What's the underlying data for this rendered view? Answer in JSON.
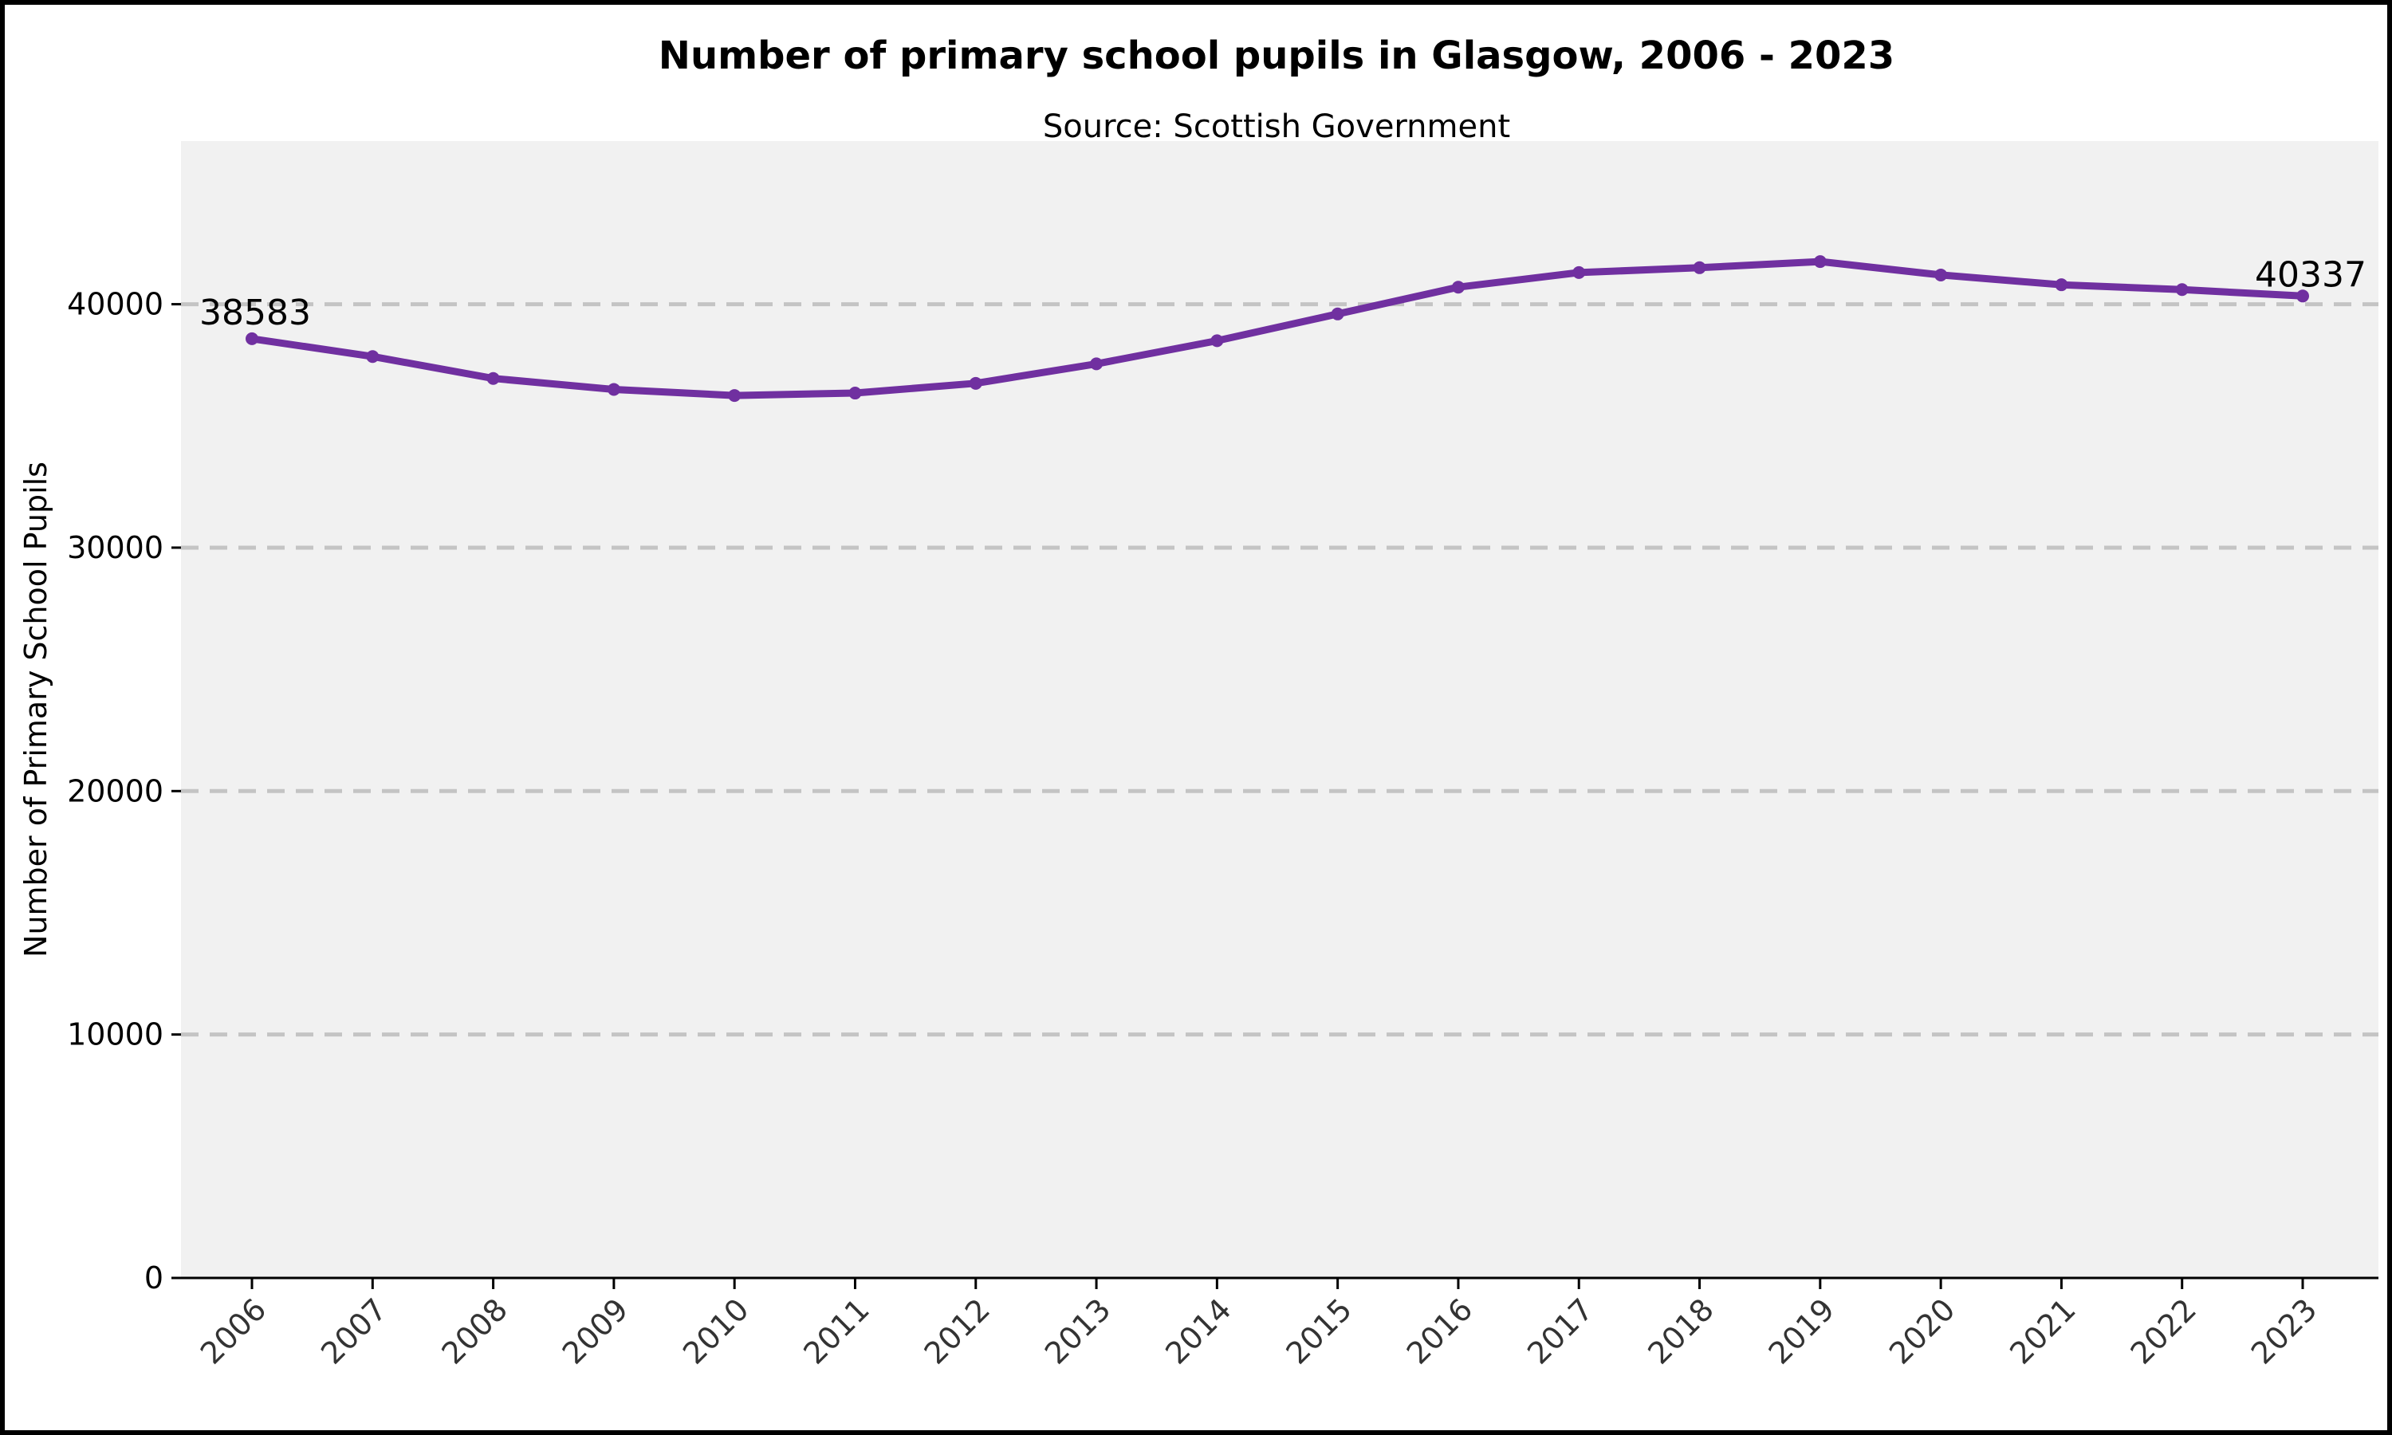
{
  "chart_data": {
    "type": "line",
    "title": "Number of primary school pupils in Glasgow, 2006 - 2023",
    "subtitle": "Source: Scottish Government",
    "xlabel": "",
    "ylabel": "Number of Primary School Pupils",
    "x": [
      "2006",
      "2007",
      "2008",
      "2009",
      "2010",
      "2011",
      "2012",
      "2013",
      "2014",
      "2015",
      "2016",
      "2017",
      "2018",
      "2019",
      "2020",
      "2021",
      "2022",
      "2023"
    ],
    "series": [
      {
        "values": [
          38583,
          37850,
          36950,
          36500,
          36250,
          36350,
          36750,
          37550,
          38500,
          39600,
          40700,
          41300,
          41500,
          41750,
          41200,
          40800,
          40600,
          40337
        ],
        "color": "#7030a0"
      }
    ],
    "yticks": [
      "0",
      "10000",
      "20000",
      "30000",
      "40000"
    ],
    "ylim": [
      0,
      46700
    ],
    "grid": "horizontal dashed",
    "annotations": [
      {
        "x": "2006",
        "text": "38583"
      },
      {
        "x": "2023",
        "text": "40337"
      }
    ],
    "colors": {
      "plot_background": "#f1f1f1",
      "gridline": "#c4c4c4",
      "line": "#7030a0"
    }
  }
}
